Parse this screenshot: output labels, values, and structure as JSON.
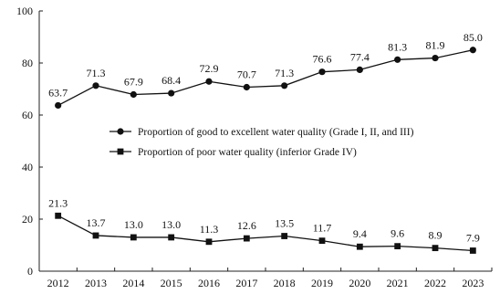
{
  "chart_data": {
    "type": "line",
    "title": "",
    "xlabel": "",
    "ylabel": "",
    "x": [
      "2012",
      "2013",
      "2014",
      "2015",
      "2016",
      "2017",
      "2018",
      "2019",
      "2020",
      "2021",
      "2022",
      "2023"
    ],
    "ylim": [
      0,
      100
    ],
    "yticks": [
      "0",
      "20",
      "40",
      "60",
      "80",
      "100"
    ],
    "grid": false,
    "legend_placement": "center-right",
    "series": [
      {
        "name": "Proportion of good to excellent water quality (Grade I, II, and III)",
        "marker": "circle",
        "color": "#111111",
        "values": [
          63.7,
          71.3,
          67.9,
          68.4,
          72.9,
          70.7,
          71.3,
          76.6,
          77.4,
          81.3,
          81.9,
          85.0
        ],
        "labels": [
          "63.7",
          "71.3",
          "67.9",
          "68.4",
          "72.9",
          "70.7",
          "71.3",
          "76.6",
          "77.4",
          "81.3",
          "81.9",
          "85.0"
        ]
      },
      {
        "name": "Proportion of poor water quality (inferior Grade IV)",
        "marker": "square",
        "color": "#111111",
        "values": [
          21.3,
          13.7,
          13.0,
          13.0,
          11.3,
          12.6,
          13.5,
          11.7,
          9.4,
          9.6,
          8.9,
          7.9
        ],
        "labels": [
          "21.3",
          "13.7",
          "13.0",
          "13.0",
          "11.3",
          "12.6",
          "13.5",
          "11.7",
          "9.4",
          "9.6",
          "8.9",
          "7.9"
        ]
      }
    ]
  }
}
